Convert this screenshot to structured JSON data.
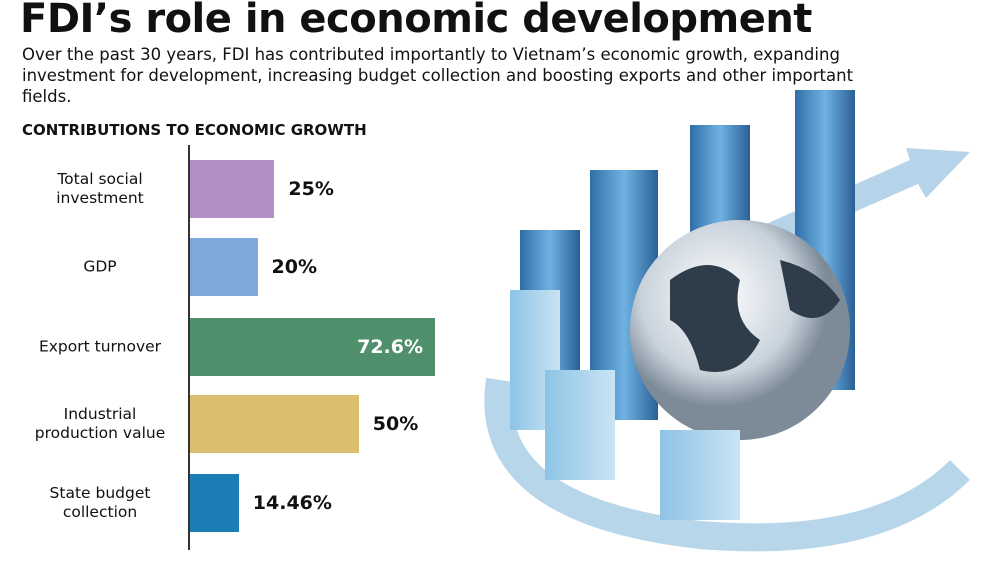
{
  "chart_data": {
    "type": "bar",
    "title": "FDI’s role in economic development",
    "subtitle": "Over the past 30 years, FDI has contributed importantly to Vietnam’s economic growth, expanding investment for development, increasing budget collection and boosting exports and other important fields.",
    "chart_title": "CONTRIBUTIONS TO ECONOMIC GROWTH",
    "categories": [
      "Total social investment",
      "GDP",
      "Export turnover",
      "Industrial production value",
      "State budget collection"
    ],
    "values": [
      25,
      20,
      72.6,
      50,
      14.46
    ],
    "value_labels": [
      "25%",
      "20%",
      "72.6%",
      "50%",
      "14.46%"
    ],
    "colors": [
      "#b18fc6",
      "#7ea8da",
      "#4f8f6b",
      "#dcbe6f",
      "#1a7db4"
    ]
  }
}
